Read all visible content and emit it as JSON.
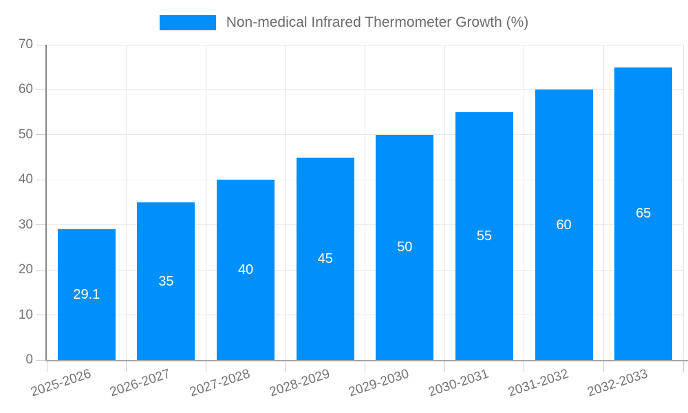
{
  "chart_data": {
    "type": "bar",
    "title": "Non-medical Infrared Thermometer Growth (%)",
    "categories": [
      "2025-2026",
      "2026-2027",
      "2027-2028",
      "2028-2029",
      "2029-2030",
      "2030-2031",
      "2031-2032",
      "2032-2033"
    ],
    "series": [
      {
        "name": "Non-medical Infrared Thermometer Growth (%)",
        "values": [
          29.1,
          35,
          40,
          45,
          50,
          55,
          60,
          65
        ]
      }
    ],
    "value_labels": [
      "29.1",
      "35",
      "40",
      "45",
      "50",
      "55",
      "60",
      "65"
    ],
    "xlabel": "",
    "ylabel": "",
    "ylim": [
      0,
      70
    ],
    "yticks": [
      0,
      10,
      20,
      30,
      40,
      50,
      60,
      70
    ],
    "grid": true,
    "legend_position": "top",
    "x_label_rotation_deg": -18
  },
  "legend": {
    "label": "Non-medical Infrared Thermometer Growth (%)"
  },
  "colors": {
    "bar": "#008FFB",
    "grid": "#e6e6e6",
    "axis_y": "#848484",
    "axis_x": "#a6a6a6",
    "tick": "#cccccc",
    "tick_label": "#757575",
    "value_label": "#ffffff",
    "legend_text": "#6b6b6b",
    "background": "#ffffff"
  }
}
